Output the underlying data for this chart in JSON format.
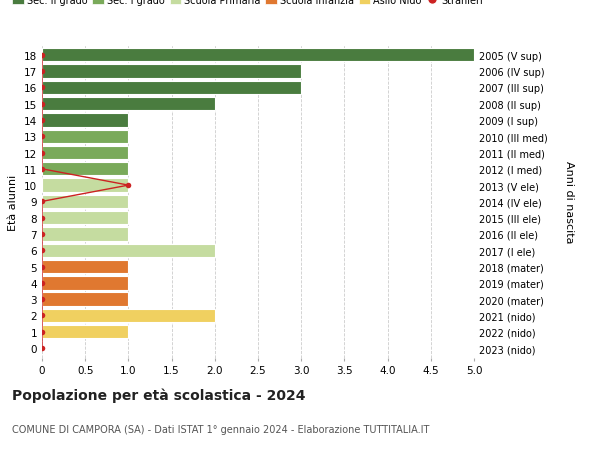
{
  "ages": [
    18,
    17,
    16,
    15,
    14,
    13,
    12,
    11,
    10,
    9,
    8,
    7,
    6,
    5,
    4,
    3,
    2,
    1,
    0
  ],
  "labels_right": [
    "2005 (V sup)",
    "2006 (IV sup)",
    "2007 (III sup)",
    "2008 (II sup)",
    "2009 (I sup)",
    "2010 (III med)",
    "2011 (II med)",
    "2012 (I med)",
    "2013 (V ele)",
    "2014 (IV ele)",
    "2015 (III ele)",
    "2016 (II ele)",
    "2017 (I ele)",
    "2018 (mater)",
    "2019 (mater)",
    "2020 (mater)",
    "2021 (nido)",
    "2022 (nido)",
    "2023 (nido)"
  ],
  "bar_values": [
    5,
    3,
    3,
    2,
    1,
    1,
    1,
    1,
    1,
    1,
    1,
    1,
    2,
    1,
    1,
    1,
    2,
    1,
    0
  ],
  "bar_colors": [
    "#4a7c3f",
    "#4a7c3f",
    "#4a7c3f",
    "#4a7c3f",
    "#4a7c3f",
    "#7aaa5a",
    "#7aaa5a",
    "#7aaa5a",
    "#c5dca0",
    "#c5dca0",
    "#c5dca0",
    "#c5dca0",
    "#c5dca0",
    "#e07830",
    "#e07830",
    "#e07830",
    "#f0d060",
    "#f0d060",
    "#f0d060"
  ],
  "stranieri_values": [
    0,
    0,
    0,
    0,
    0,
    0,
    0,
    0,
    1,
    0,
    0,
    0,
    0,
    0,
    0,
    0,
    0,
    0,
    0
  ],
  "stranieri_color": "#cc2222",
  "ylabel_left": "Età alunni",
  "ylabel_right": "Anni di nascita",
  "title": "Popolazione per età scolastica - 2024",
  "subtitle": "COMUNE DI CAMPORA (SA) - Dati ISTAT 1° gennaio 2024 - Elaborazione TUTTITALIA.IT",
  "xlim": [
    0,
    5.0
  ],
  "xticks": [
    0,
    0.5,
    1.0,
    1.5,
    2.0,
    2.5,
    3.0,
    3.5,
    4.0,
    4.5,
    5.0
  ],
  "xtick_labels": [
    "0",
    "0.5",
    "1.0",
    "1.5",
    "2.0",
    "2.5",
    "3.0",
    "3.5",
    "4.0",
    "4.5",
    "5.0"
  ],
  "legend_entries": [
    "Sec. II grado",
    "Sec. I grado",
    "Scuola Primaria",
    "Scuola Infanzia",
    "Asilo Nido",
    "Stranieri"
  ],
  "legend_colors": [
    "#4a7c3f",
    "#7aaa5a",
    "#c5dca0",
    "#e07830",
    "#f0d060",
    "#cc2222"
  ],
  "background_color": "#ffffff",
  "grid_color": "#cccccc",
  "bar_height": 0.82
}
